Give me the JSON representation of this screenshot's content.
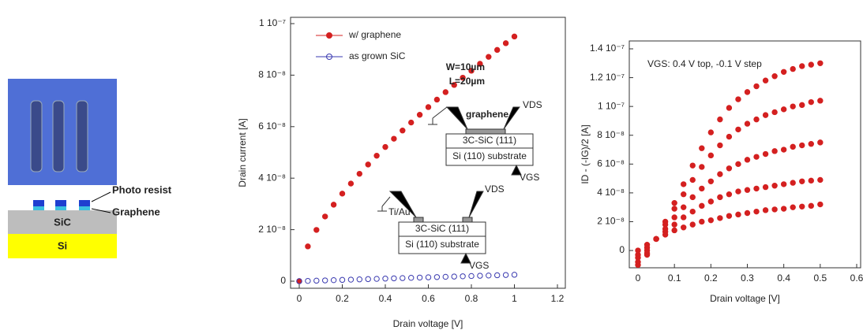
{
  "diagram": {
    "labels": [
      "Photo resist",
      "Graphene",
      "SiC",
      "Si"
    ]
  },
  "chart_data": [
    {
      "type": "scatter",
      "xlabel": "Drain voltage [V]",
      "ylabel": "Drain current [A]",
      "xlim": [
        0,
        1.2
      ],
      "ylim": [
        0,
        1e-07
      ],
      "xticks": [
        0,
        0.2,
        0.4,
        0.6,
        0.8,
        1,
        1.2
      ],
      "yticks": [
        0,
        {
          "value": 2e-08,
          "label": "2 10⁻⁸"
        },
        {
          "value": 4e-08,
          "label": "4 10⁻⁸"
        },
        {
          "value": 6e-08,
          "label": "6 10⁻⁸"
        },
        {
          "value": 8e-08,
          "label": "8 10⁻⁸"
        },
        {
          "value": 1e-07,
          "label": "1 10⁻⁷"
        }
      ],
      "legend": "upper left",
      "x": [
        0,
        0.04,
        0.08,
        0.12,
        0.16,
        0.2,
        0.24,
        0.28,
        0.32,
        0.36,
        0.4,
        0.44,
        0.48,
        0.52,
        0.56,
        0.6,
        0.64,
        0.68,
        0.72,
        0.76,
        0.8,
        0.84,
        0.88,
        0.92,
        0.96,
        1.0
      ],
      "series": [
        {
          "name": "w/ graphene",
          "color": "#d42020",
          "marker": "filled",
          "values": [
            0,
            1.35e-08,
            1.99e-08,
            2.51e-08,
            2.97e-08,
            3.4e-08,
            3.79e-08,
            4.17e-08,
            4.53e-08,
            4.87e-08,
            5.21e-08,
            5.53e-08,
            5.85e-08,
            6.16e-08,
            6.46e-08,
            6.76e-08,
            7.05e-08,
            7.34e-08,
            7.62e-08,
            7.9e-08,
            8.17e-08,
            8.44e-08,
            8.71e-08,
            8.98e-08,
            9.24e-08,
            9.5e-08
          ]
        },
        {
          "name": "as grown SiC",
          "color": "#3a3ab0",
          "marker": "open",
          "values": [
            0,
            1e-10,
            2e-10,
            3e-10,
            4e-10,
            5e-10,
            6e-10,
            7e-10,
            8e-10,
            9e-10,
            1e-09,
            1.1e-09,
            1.2e-09,
            1.3e-09,
            1.4e-09,
            1.5e-09,
            1.6e-09,
            1.7e-09,
            1.8e-09,
            1.9e-09,
            2e-09,
            2.1e-09,
            2.2e-09,
            2.3e-09,
            2.4e-09,
            2.5e-09
          ]
        }
      ],
      "annotations": [
        "W=10µm",
        "L=20µm",
        "graphene",
        "VDS",
        "3C-SiC (111)",
        "Si (110) substrate",
        "VGS",
        "Ti/Au",
        "VDS",
        "3C-SiC (111)",
        "Si (110) substrate",
        "VGS"
      ]
    },
    {
      "type": "scatter",
      "xlabel": "Drain voltage [V]",
      "ylabel": "ID - (-IG)/2 [A]",
      "xlim": [
        0,
        0.6
      ],
      "ylim": [
        -1.2e-08,
        1.4e-07
      ],
      "xticks": [
        0,
        0.1,
        0.2,
        0.3,
        0.4,
        0.5,
        0.6
      ],
      "yticks": [
        0,
        {
          "value": 2e-08,
          "label": "2 10⁻⁸"
        },
        {
          "value": 4e-08,
          "label": "4 10⁻⁸"
        },
        {
          "value": 6e-08,
          "label": "6 10⁻⁸"
        },
        {
          "value": 8e-08,
          "label": "8 10⁻⁸"
        },
        {
          "value": 1e-07,
          "label": "1 10⁻⁷"
        },
        {
          "value": 1.2e-07,
          "label": "1.2 10⁻⁷"
        },
        {
          "value": 1.4e-07,
          "label": "1.4 10⁻⁷"
        }
      ],
      "x": [
        0,
        0.025,
        0.05,
        0.075,
        0.1,
        0.125,
        0.15,
        0.175,
        0.2,
        0.225,
        0.25,
        0.275,
        0.3,
        0.325,
        0.35,
        0.375,
        0.4,
        0.425,
        0.45,
        0.475,
        0.5
      ],
      "series": [
        {
          "color": "#d42020",
          "marker": "filled",
          "values": [
            -1e-08,
            -3e-09,
            8e-09,
            2e-08,
            3.3e-08,
            4.6e-08,
            5.9e-08,
            7.1e-08,
            8.2e-08,
            9.1e-08,
            9.9e-08,
            1.05e-07,
            1.1e-07,
            1.14e-07,
            1.18e-07,
            1.21e-07,
            1.24e-07,
            1.26e-07,
            1.28e-07,
            1.29e-07,
            1.3e-07
          ]
        },
        {
          "color": "#d42020",
          "marker": "filled",
          "values": [
            -8e-09,
            -2e-09,
            8e-09,
            1.8e-08,
            2.9e-08,
            3.9e-08,
            4.9e-08,
            5.8e-08,
            6.6e-08,
            7.3e-08,
            7.9e-08,
            8.4e-08,
            8.8e-08,
            9.1e-08,
            9.4e-08,
            9.6e-08,
            9.8e-08,
            1e-07,
            1.01e-07,
            1.03e-07,
            1.04e-07
          ]
        },
        {
          "color": "#d42020",
          "marker": "filled",
          "values": [
            -5e-09,
            0,
            8e-09,
            1.5e-08,
            2.3e-08,
            3e-08,
            3.7e-08,
            4.3e-08,
            4.8e-08,
            5.3e-08,
            5.7e-08,
            6e-08,
            6.3e-08,
            6.5e-08,
            6.7e-08,
            6.9e-08,
            7e-08,
            7.2e-08,
            7.3e-08,
            7.4e-08,
            7.5e-08
          ]
        },
        {
          "color": "#d42020",
          "marker": "filled",
          "values": [
            -3e-09,
            2e-09,
            8e-09,
            1.3e-08,
            1.8e-08,
            2.3e-08,
            2.7e-08,
            3.1e-08,
            3.4e-08,
            3.7e-08,
            3.9e-08,
            4.1e-08,
            4.2e-08,
            4.3e-08,
            4.4e-08,
            4.5e-08,
            4.6e-08,
            4.7e-08,
            4.8e-08,
            4.85e-08,
            4.9e-08
          ]
        },
        {
          "color": "#d42020",
          "marker": "filled",
          "values": [
            0,
            4e-09,
            8e-09,
            1.1e-08,
            1.4e-08,
            1.6e-08,
            1.8e-08,
            2e-08,
            2.1e-08,
            2.25e-08,
            2.4e-08,
            2.5e-08,
            2.6e-08,
            2.7e-08,
            2.8e-08,
            2.85e-08,
            2.9e-08,
            3e-08,
            3.05e-08,
            3.1e-08,
            3.2e-08
          ]
        }
      ],
      "annotations": [
        "VGS: 0.4 V top, -0.1 V step"
      ]
    }
  ]
}
